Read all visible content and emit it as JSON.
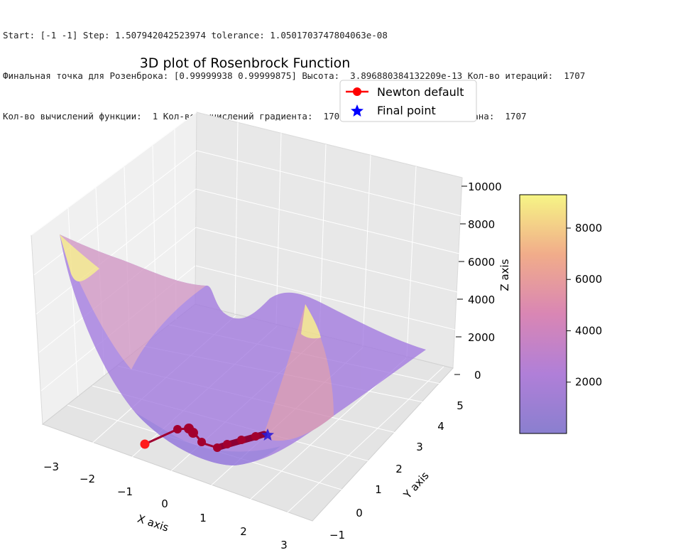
{
  "console_lines": [
    "Start: [-1 -1] Step: 1.507942042523974 tolerance: 1.0501703747804063e-08",
    "Финальная точка для Розенброка: [0.99999938 0.99999875] Высота:  3.896880384132209e-13 Кол-во итераций:  1707",
    "Кол-во вычислений функции:  1 Кол-во вычислений градиента:  1707 Кол-во вычислений гессиана:  1707"
  ],
  "chart_data": {
    "type": "surface3d",
    "title": "3D plot of Rosenbrock Function",
    "xlabel": "X axis",
    "ylabel": "Y axis",
    "zlabel": "Z axis",
    "xlim": [
      -3,
      3
    ],
    "ylim": [
      -1,
      5
    ],
    "zlim": [
      0,
      10000
    ],
    "x_ticks": [
      "−3",
      "−2",
      "−1",
      "0",
      "1",
      "2",
      "3"
    ],
    "y_ticks": [
      "−1",
      "0",
      "1",
      "2",
      "3",
      "4",
      "5"
    ],
    "z_ticks": [
      "0",
      "2000",
      "4000",
      "6000",
      "8000",
      "10000"
    ],
    "surface_function": "(1 - x)^2 + 100 (y - x^2)^2",
    "colormap": "plasma",
    "colorbar": {
      "ticks": [
        "2000",
        "4000",
        "6000",
        "8000"
      ],
      "tick_values": [
        2000,
        4000,
        6000,
        8000
      ],
      "range": [
        0,
        9300
      ]
    },
    "grid": true,
    "legend_placement": "top-right",
    "legend": [
      {
        "label": "Newton default",
        "color": "#ff0000",
        "marker": "circle-line"
      },
      {
        "label": "Final point",
        "color": "#0000ff",
        "marker": "star"
      }
    ],
    "path": {
      "name": "Newton default",
      "start": [
        -1,
        -1,
        404
      ],
      "points": [
        [
          -1,
          -1,
          404
        ],
        [
          -0.6,
          0.0,
          20
        ],
        [
          -0.3,
          0.2,
          4
        ],
        [
          0.0,
          0.05,
          1
        ],
        [
          0.3,
          0.05,
          0.5
        ],
        [
          0.5,
          0.25,
          0.25
        ],
        [
          0.7,
          0.5,
          0.1
        ],
        [
          0.9,
          0.8,
          0.01
        ],
        [
          1.0,
          1.0,
          0
        ]
      ],
      "final_point": [
        0.99999938,
        0.99999875,
        0
      ]
    }
  }
}
